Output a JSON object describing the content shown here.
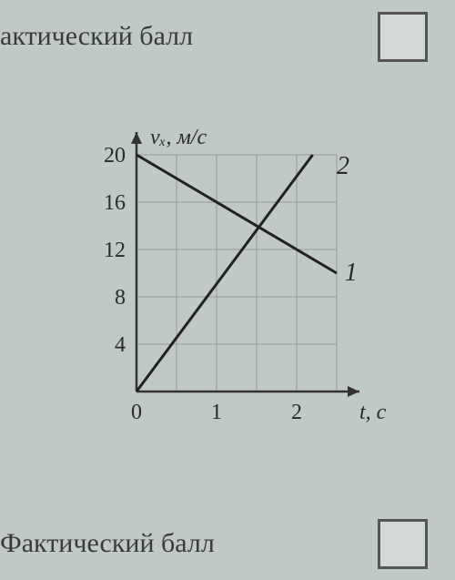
{
  "header": {
    "text": "актический балл"
  },
  "footer": {
    "text": "Фактический балл"
  },
  "chart": {
    "type": "line",
    "y_axis": {
      "label": "vₓ, м/с",
      "min": 0,
      "max": 20,
      "ticks": [
        4,
        8,
        12,
        16,
        20
      ]
    },
    "x_axis": {
      "label": "t, с",
      "min": 0,
      "max": 2.5,
      "ticks": [
        0,
        1,
        2
      ]
    },
    "grid": {
      "x_lines": [
        0.5,
        1,
        1.5,
        2,
        2.5
      ],
      "y_lines": [
        4,
        8,
        12,
        16,
        20
      ],
      "color": "#999999"
    },
    "series": [
      {
        "name": "line1",
        "label": "1",
        "points": [
          [
            0,
            20
          ],
          [
            2.5,
            10
          ]
        ],
        "label_pos": [
          2.6,
          10
        ],
        "color": "#222222",
        "width": 3
      },
      {
        "name": "line2",
        "label": "2",
        "points": [
          [
            0,
            0
          ],
          [
            2.2,
            20
          ]
        ],
        "label_pos": [
          2.5,
          19
        ],
        "color": "#222222",
        "width": 3
      }
    ],
    "plot": {
      "ox": 90,
      "oy": 300,
      "x_scale": 88,
      "y_scale": 13,
      "background": "#c0c8c8"
    }
  }
}
